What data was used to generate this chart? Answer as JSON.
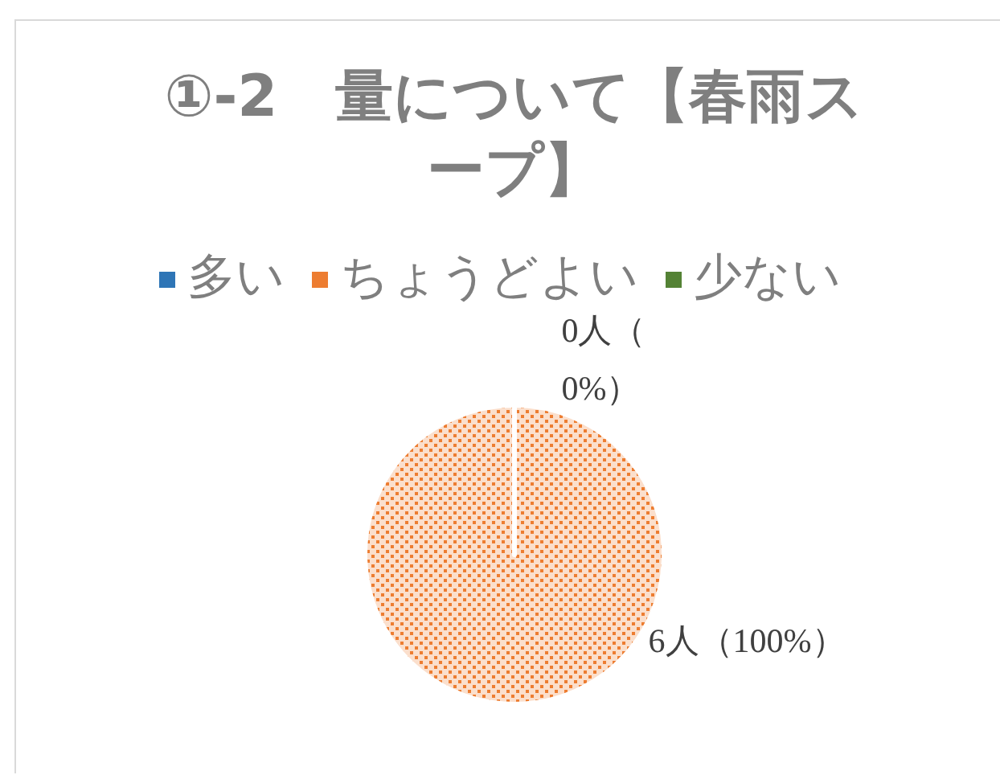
{
  "chart_data": {
    "type": "pie",
    "title": "①-2　量について【春雨スープ】",
    "categories": [
      "多い",
      "ちょうどよい",
      "少ない"
    ],
    "values": [
      0,
      6,
      0
    ],
    "colors": [
      "#2e75b6",
      "#ed7d31",
      "#548235"
    ],
    "value_labels": [
      "0人（0%）",
      "6人（100%）",
      null
    ],
    "legend": "top"
  }
}
